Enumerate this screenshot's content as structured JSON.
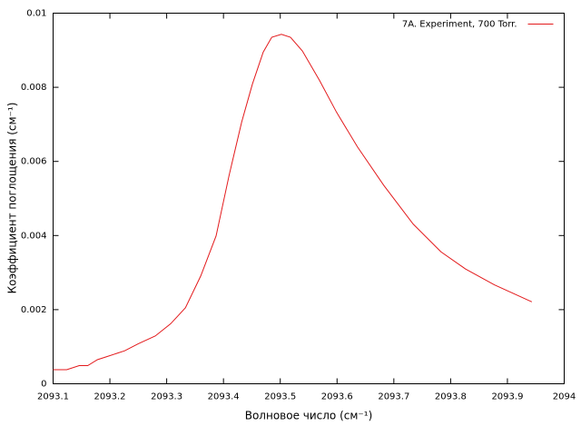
{
  "chart_data": {
    "type": "line",
    "xlabel": "Волновое число (см⁻¹)",
    "ylabel": "Коэффициент поглощения (см⁻¹)",
    "legend": "top-right",
    "x": [
      2093.1,
      2093.124,
      2093.146,
      2093.161,
      2093.178,
      2093.194,
      2093.226,
      2093.25,
      2093.28,
      2093.307,
      2093.333,
      2093.36,
      2093.387,
      2093.41,
      2093.432,
      2093.451,
      2093.47,
      2093.485,
      2093.502,
      2093.518,
      2093.539,
      2093.569,
      2093.599,
      2093.636,
      2093.682,
      2093.734,
      2093.783,
      2093.826,
      2093.877,
      2093.943
    ],
    "series": [
      {
        "name": "7A. Experiment, 700 Torr.",
        "color": "#e31a1c",
        "values": [
          0.00038,
          0.00038,
          0.00049,
          0.00049,
          0.00065,
          0.00073,
          0.00089,
          0.00108,
          0.00129,
          0.00162,
          0.00205,
          0.00291,
          0.00399,
          0.00563,
          0.00706,
          0.00809,
          0.00895,
          0.00935,
          0.00943,
          0.00935,
          0.00898,
          0.00819,
          0.00733,
          0.00639,
          0.00536,
          0.00431,
          0.00356,
          0.0031,
          0.00267,
          0.00221
        ]
      }
    ],
    "xlim": [
      2093.1,
      2094
    ],
    "xticks": [
      2093.1,
      2093.2,
      2093.3,
      2093.4,
      2093.5,
      2093.6,
      2093.7,
      2093.8,
      2093.9,
      2094
    ],
    "ylim": [
      0,
      0.01
    ],
    "yticks": [
      0,
      0.002,
      0.004,
      0.006,
      0.008,
      0.01
    ],
    "grid": false
  }
}
